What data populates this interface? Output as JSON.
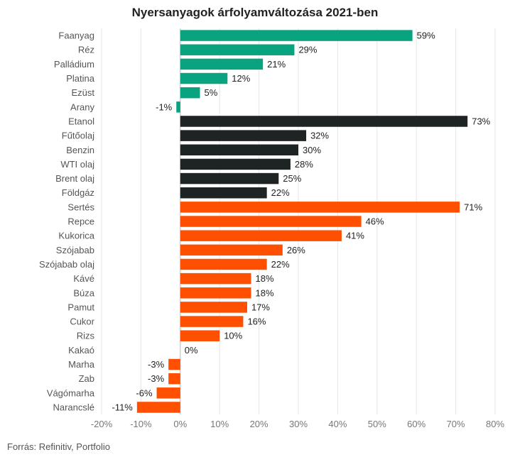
{
  "chart_data": {
    "type": "bar",
    "orientation": "horizontal",
    "title": "Nyersanyagok árfolyamváltozása 2021-ben",
    "source": "Forrás: Refinitiv, Portfolio",
    "xlim": [
      -20,
      80
    ],
    "x_ticks": [
      -20,
      -10,
      0,
      10,
      20,
      30,
      40,
      50,
      60,
      70,
      80
    ],
    "tick_suffix": "%",
    "grid": true,
    "groups": {
      "metals": "#0aa37f",
      "energy": "#1e2423",
      "agri": "#fe5000"
    },
    "bars": [
      {
        "category": "Faanyag",
        "value": 59,
        "group": "metals",
        "label": "59%"
      },
      {
        "category": "Réz",
        "value": 29,
        "group": "metals",
        "label": "29%"
      },
      {
        "category": "Palládium",
        "value": 21,
        "group": "metals",
        "label": "21%"
      },
      {
        "category": "Platina",
        "value": 12,
        "group": "metals",
        "label": "12%"
      },
      {
        "category": "Ezüst",
        "value": 5,
        "group": "metals",
        "label": "5%"
      },
      {
        "category": "Arany",
        "value": -1,
        "group": "metals",
        "label": "-1%"
      },
      {
        "category": "Etanol",
        "value": 73,
        "group": "energy",
        "label": "73%"
      },
      {
        "category": "Fűtőolaj",
        "value": 32,
        "group": "energy",
        "label": "32%"
      },
      {
        "category": "Benzin",
        "value": 30,
        "group": "energy",
        "label": "30%"
      },
      {
        "category": "WTI olaj",
        "value": 28,
        "group": "energy",
        "label": "28%"
      },
      {
        "category": "Brent olaj",
        "value": 25,
        "group": "energy",
        "label": "25%"
      },
      {
        "category": "Földgáz",
        "value": 22,
        "group": "energy",
        "label": "22%"
      },
      {
        "category": "Sertés",
        "value": 71,
        "group": "agri",
        "label": "71%"
      },
      {
        "category": "Repce",
        "value": 46,
        "group": "agri",
        "label": "46%"
      },
      {
        "category": "Kukorica",
        "value": 41,
        "group": "agri",
        "label": "41%"
      },
      {
        "category": "Szójabab",
        "value": 26,
        "group": "agri",
        "label": "26%"
      },
      {
        "category": "Szójabab olaj",
        "value": 22,
        "group": "agri",
        "label": "22%"
      },
      {
        "category": "Kávé",
        "value": 18,
        "group": "agri",
        "label": "18%"
      },
      {
        "category": "Búza",
        "value": 18,
        "group": "agri",
        "label": "18%"
      },
      {
        "category": "Pamut",
        "value": 17,
        "group": "agri",
        "label": "17%"
      },
      {
        "category": "Cukor",
        "value": 16,
        "group": "agri",
        "label": "16%"
      },
      {
        "category": "Rizs",
        "value": 10,
        "group": "agri",
        "label": "10%"
      },
      {
        "category": "Kakaó",
        "value": 0,
        "group": "agri",
        "label": "0%"
      },
      {
        "category": "Marha",
        "value": -3,
        "group": "agri",
        "label": "-3%"
      },
      {
        "category": "Zab",
        "value": -3,
        "group": "agri",
        "label": "-3%"
      },
      {
        "category": "Vágómarha",
        "value": -6,
        "group": "agri",
        "label": "-6%"
      },
      {
        "category": "Narancslé",
        "value": -11,
        "group": "agri",
        "label": "-11%"
      }
    ]
  }
}
